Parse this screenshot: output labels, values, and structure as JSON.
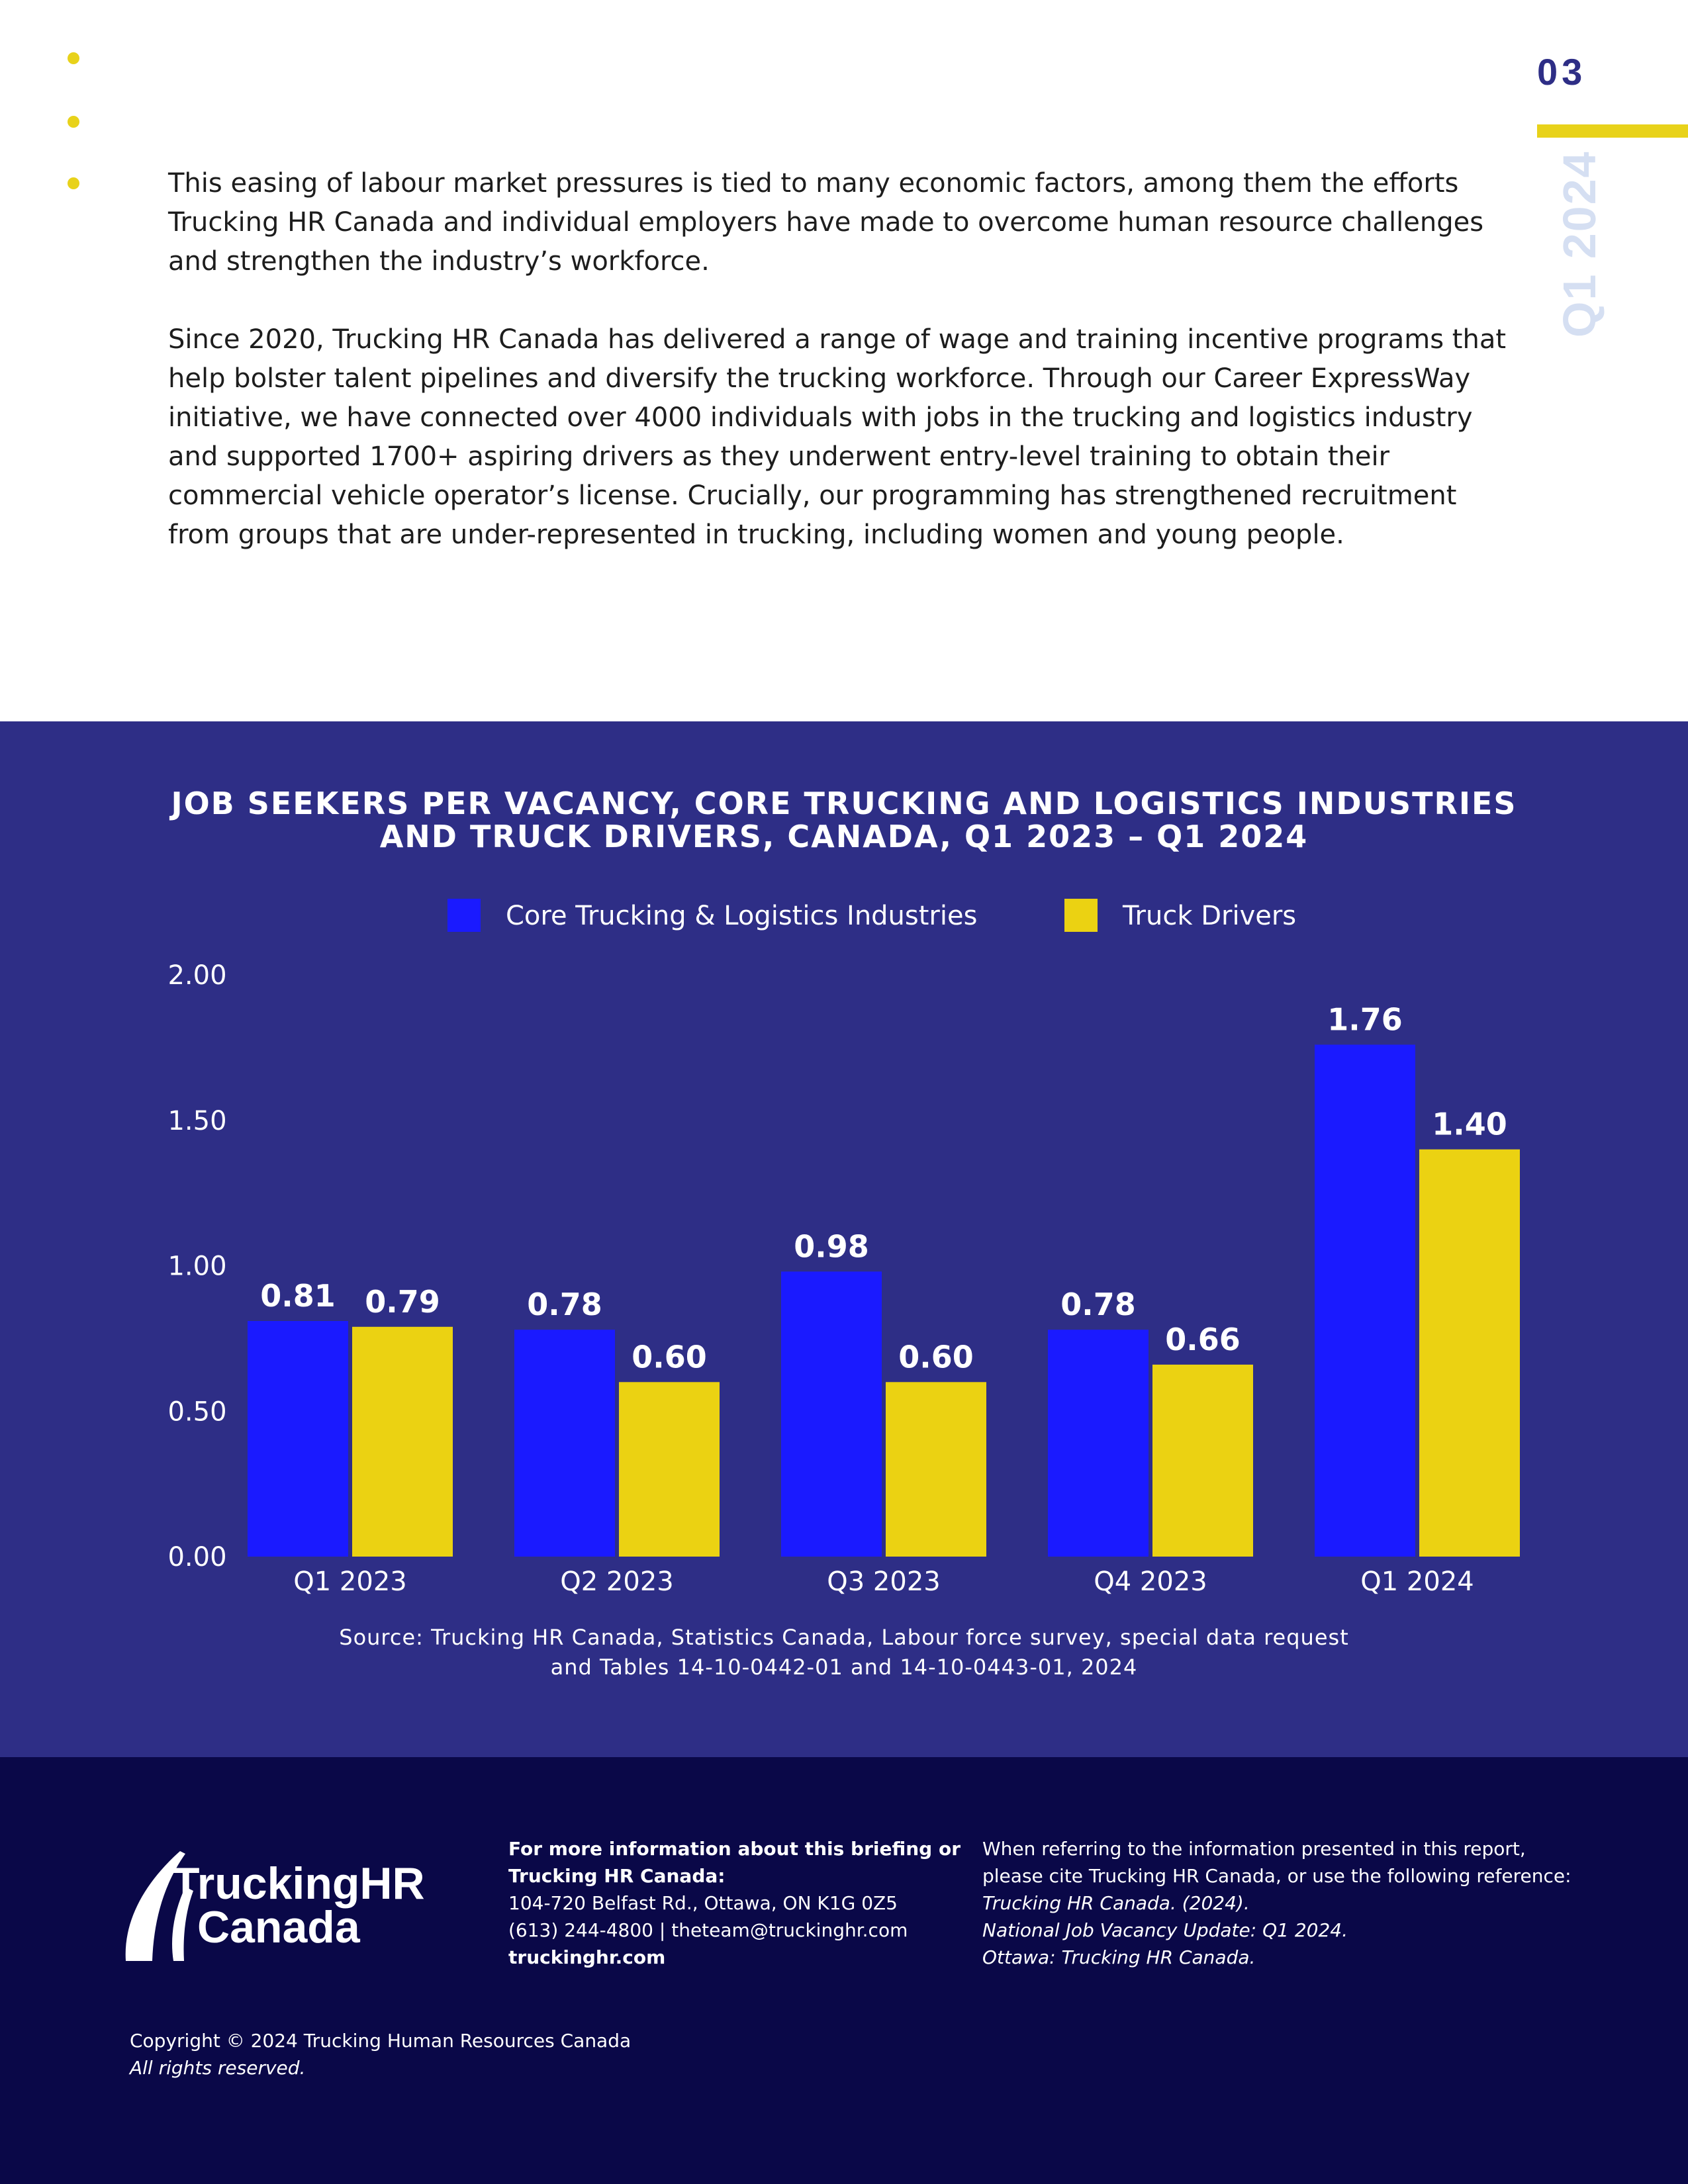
{
  "page": {
    "number": "03",
    "side_label": "Q1 2024",
    "accent_color": "#e8d21a",
    "navy_color": "#2e2e86"
  },
  "body": {
    "paragraph_1": "This easing of labour market pressures is tied to many economic factors, among them the efforts Trucking HR Canada and individual employers have made to overcome human resource challenges and strengthen the industry’s workforce.",
    "paragraph_2": "Since 2020, Trucking HR Canada has delivered a range of wage and training incentive programs that help bolster talent pipelines and diversify the trucking workforce. Through our Career ExpressWay initiative, we have connected over 4000 individuals with jobs in the trucking and logistics industry and supported 1700+ aspiring drivers as they underwent entry-level training to obtain their commercial vehicle operator’s license. Crucially, our programming has strengthened recruitment from groups that are under-represented in trucking, including women and young people."
  },
  "chart_data": {
    "type": "bar",
    "title_line_1": "JOB SEEKERS PER VACANCY, CORE TRUCKING AND LOGISTICS INDUSTRIES",
    "title_line_2": "AND TRUCK DRIVERS, CANADA, Q1 2023 – Q1 2024",
    "categories": [
      "Q1 2023",
      "Q2 2023",
      "Q3 2023",
      "Q4 2023",
      "Q1 2024"
    ],
    "series": [
      {
        "name": "Core Trucking & Logistics Industries",
        "color": "#1a1aff",
        "values": [
          0.81,
          0.78,
          0.98,
          0.78,
          1.76
        ],
        "labels": [
          "0.81",
          "0.78",
          "0.98",
          "0.78",
          "1.76"
        ]
      },
      {
        "name": "Truck Drivers",
        "color": "#ebd212",
        "values": [
          0.79,
          0.6,
          0.6,
          0.66,
          1.4
        ],
        "labels": [
          "0.79",
          "0.60",
          "0.60",
          "0.66",
          "1.40"
        ]
      }
    ],
    "ylim": [
      0,
      2
    ],
    "yticks": [
      0,
      0.5,
      1,
      1.5,
      2
    ],
    "ytick_labels": [
      "0.00",
      "0.50",
      "1.00",
      "1.50",
      "2.00"
    ],
    "grid": false,
    "legend_position": "top-center",
    "source_line_1": "Source: Trucking HR Canada, Statistics Canada, Labour force survey, special data request",
    "source_line_2": "and Tables 14-10-0442-01 and 14-10-0443-01, 2024"
  },
  "footer": {
    "logo_line_1": "TruckingHR",
    "logo_line_2": "Canada",
    "contact_heading_1": "For more information about this briefing or",
    "contact_heading_2": "Trucking HR Canada:",
    "address": "104-720 Belfast Rd., Ottawa, ON K1G 0Z5",
    "phone_email": "(613) 244-4800 | theteam@truckinghr.com",
    "website": "truckinghr.com",
    "cite_intro_1": "When referring to the information presented in this report,",
    "cite_intro_2": "please cite Trucking HR Canada, or use the following reference:",
    "cite_ref_1": "Trucking HR Canada. (2024).",
    "cite_ref_2": "National Job Vacancy Update: Q1 2024.",
    "cite_ref_3": "Ottawa: Trucking HR Canada.",
    "copyright": "Copyright © 2024 Trucking Human Resources Canada",
    "rights": "All rights reserved."
  }
}
